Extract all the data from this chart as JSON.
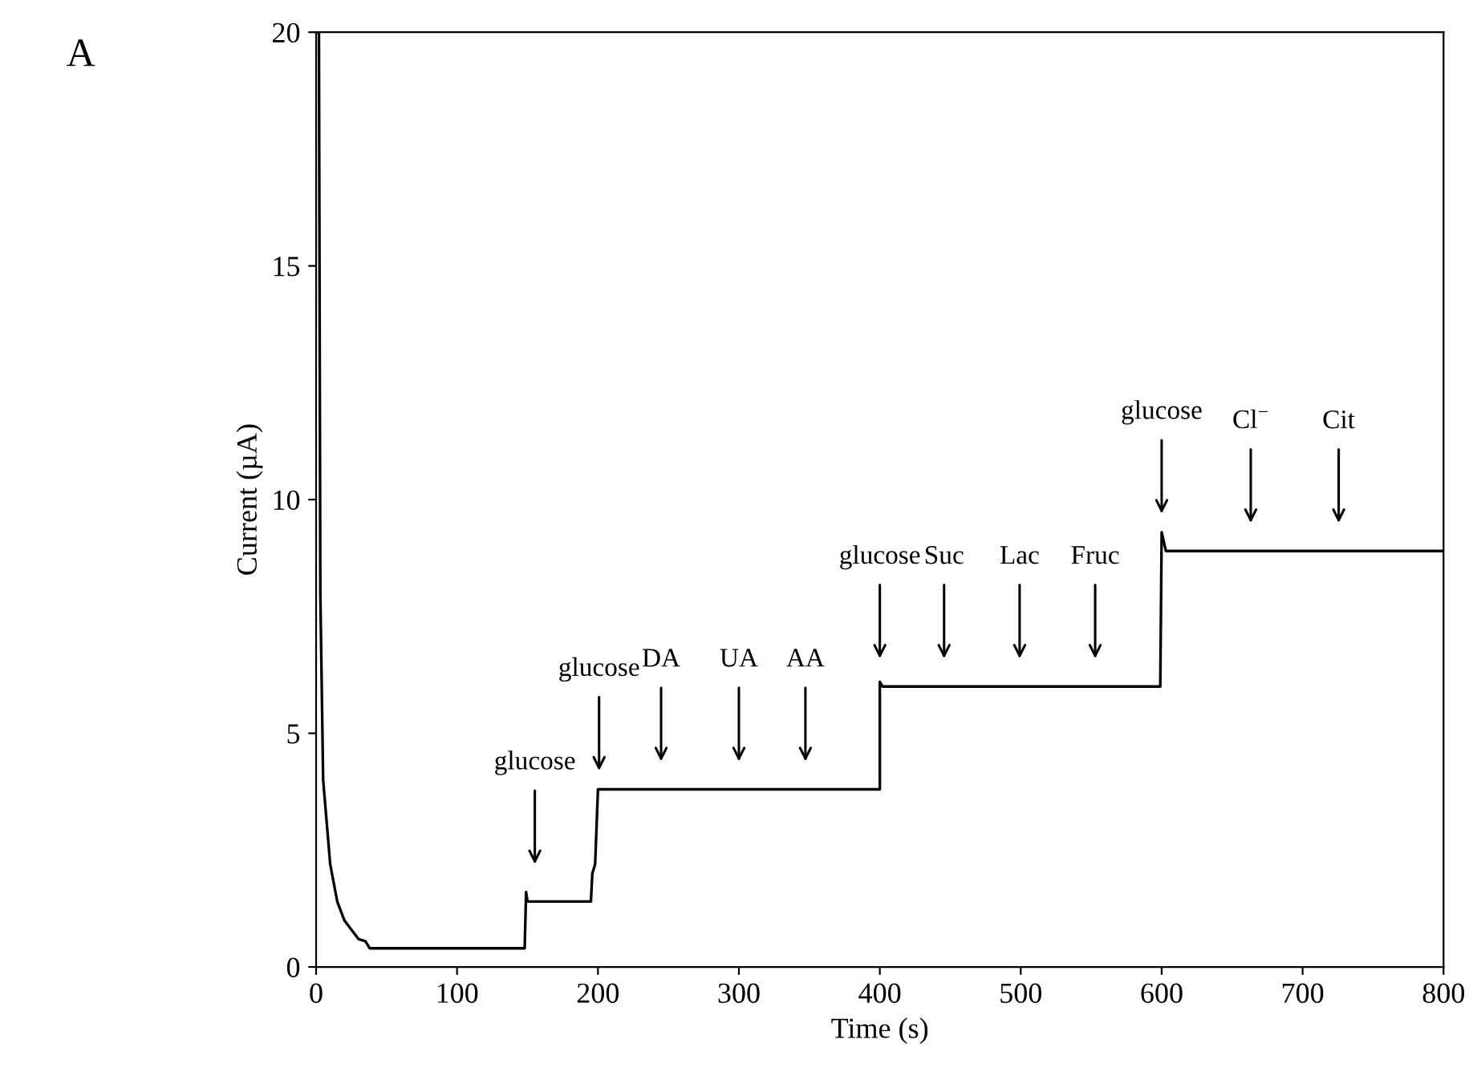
{
  "chart_data": {
    "type": "line",
    "xlabel": "Time (s)",
    "ylabel": "Current (µA)",
    "xlim": [
      0,
      800
    ],
    "ylim": [
      0,
      20
    ],
    "xticks": [
      0,
      100,
      200,
      300,
      400,
      500,
      600,
      700,
      800
    ],
    "yticks": [
      0,
      5,
      10,
      15,
      20
    ],
    "grid": false,
    "legend": false,
    "marker": "none",
    "line_style": "solid",
    "series": [
      {
        "color": "#000000",
        "x": [
          0,
          2,
          3,
          5,
          10,
          15,
          20,
          25,
          30,
          35,
          38,
          148,
          149,
          150,
          195,
          196,
          198,
          200,
          400,
          400,
          402,
          599,
          600,
          603,
          800
        ],
        "values": [
          20,
          20,
          8,
          4,
          2.2,
          1.4,
          1.0,
          0.8,
          0.6,
          0.55,
          0.4,
          0.4,
          1.6,
          1.4,
          1.4,
          2.0,
          2.2,
          3.8,
          3.8,
          6.1,
          6.0,
          6.0,
          9.3,
          8.9,
          8.9
        ]
      }
    ],
    "annotations": [
      "A",
      "glucose",
      "glucose",
      "DA",
      "UA",
      "AA",
      "glucose",
      "Suc",
      "Lac",
      "Fruc",
      "glucose",
      "Cl$^{−}$",
      "Cit"
    ]
  }
}
